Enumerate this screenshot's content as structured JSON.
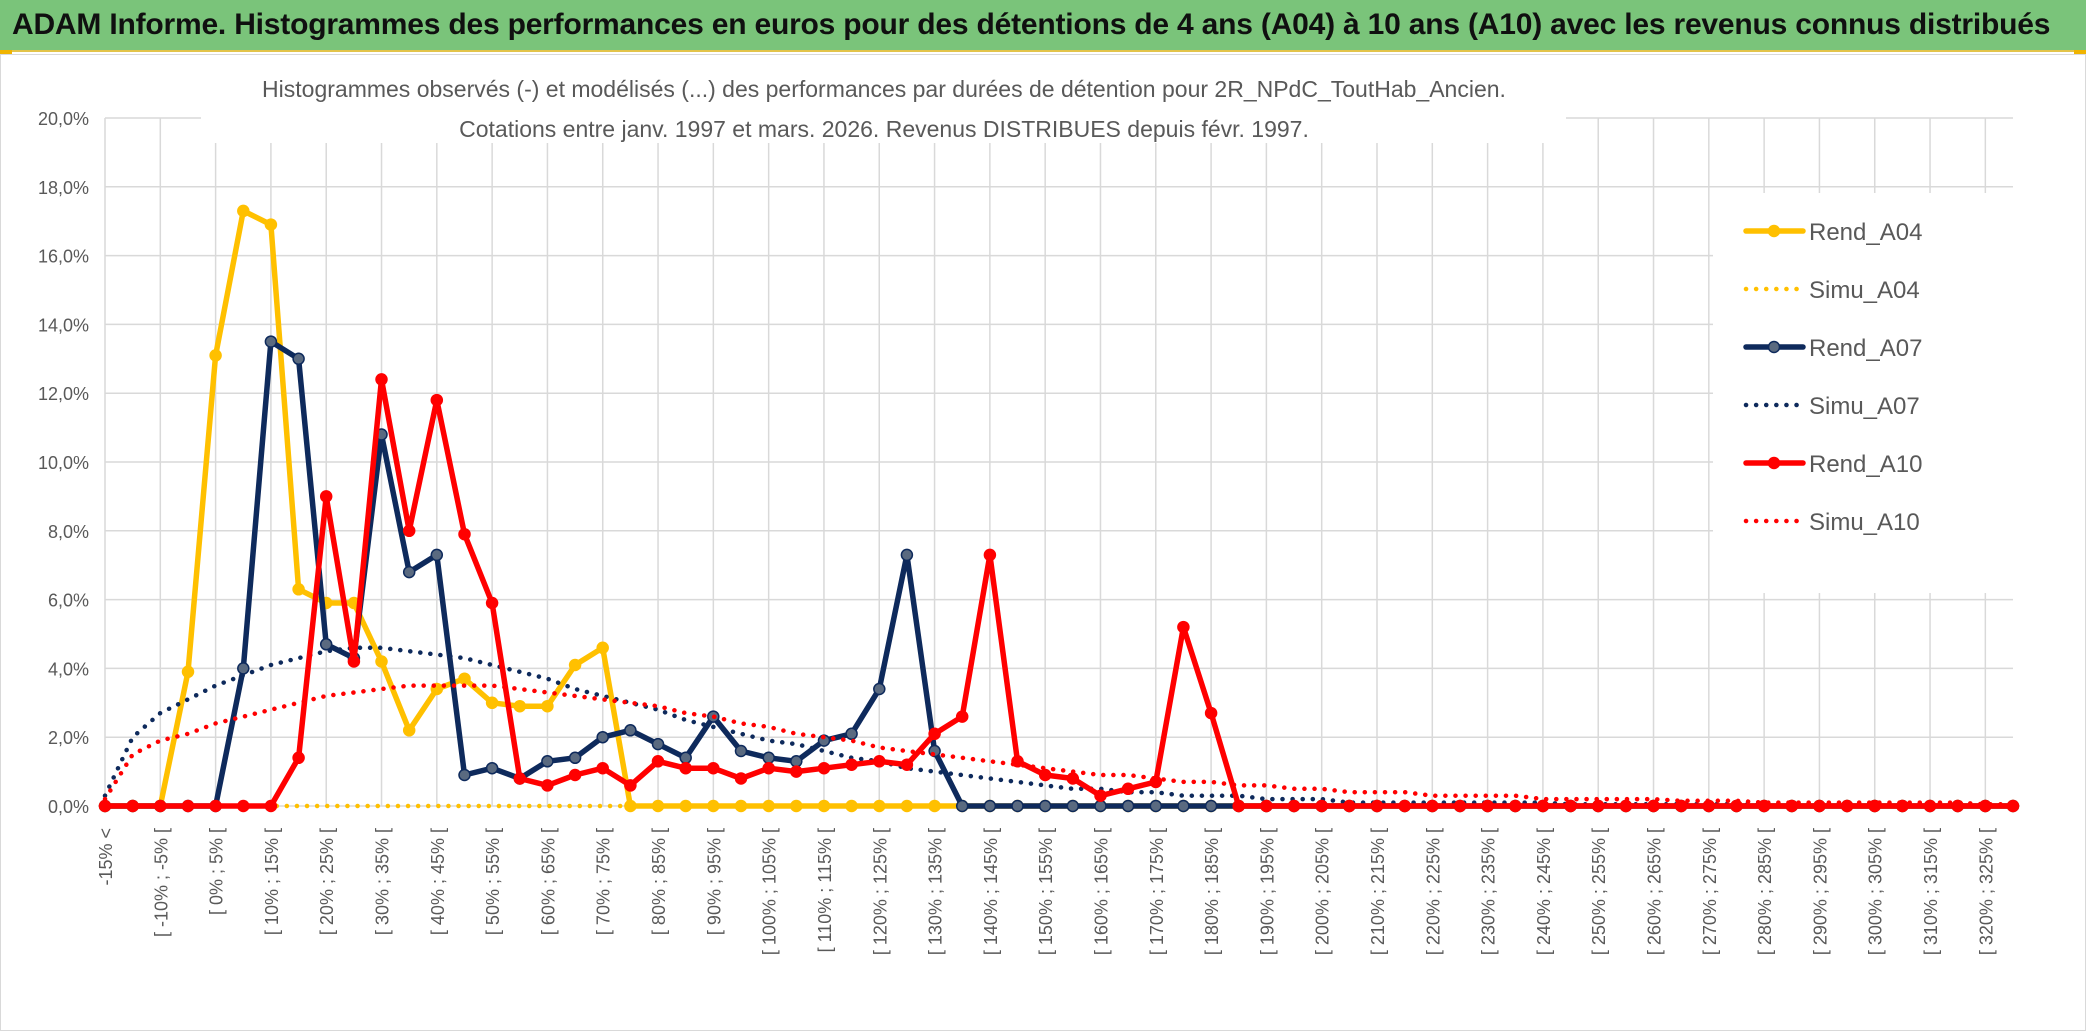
{
  "header": {
    "title": "ADAM Informe. Histogrammes des performances en euros pour des détentions de 4 ans (A04) à 10 ans (A10) avec les revenus connus distribués"
  },
  "chart_data": {
    "type": "line",
    "title_line1": "Histogrammes observés (-) et modélisés (...) des performances par durées de détention pour 2R_NPdC_ToutHab_Ancien.",
    "title_line2": "Cotations entre janv. 1997 et mars. 2026. Revenus DISTRIBUES depuis févr. 1997.",
    "xlabel": "",
    "ylabel": "",
    "ylim": [
      0,
      20
    ],
    "yticks": [
      0,
      2,
      4,
      6,
      8,
      10,
      12,
      14,
      16,
      18,
      20
    ],
    "ytick_labels": [
      "0,0%",
      "2,0%",
      "4,0%",
      "6,0%",
      "8,0%",
      "10,0%",
      "12,0%",
      "14,0%",
      "16,0%",
      "18,0%",
      "20,0%"
    ],
    "grid": true,
    "legend_position": "right",
    "categories": [
      "-15% <",
      "[ -15% ; -10% [",
      "[ -10% ; -5% [",
      "[ -5% ; 0% [",
      "[ 0% ; 5% [",
      "[ 5% ; 10% [",
      "[ 10% ; 15% [",
      "[ 15% ; 20% [",
      "[ 20% ; 25% [",
      "[ 25% ; 30% [",
      "[ 30% ; 35% [",
      "[ 35% ; 40% [",
      "[ 40% ; 45% [",
      "[ 45% ; 50% [",
      "[ 50% ; 55% [",
      "[ 55% ; 60% [",
      "[ 60% ; 65% [",
      "[ 65% ; 70% [",
      "[ 70% ; 75% [",
      "[ 75% ; 80% [",
      "[ 80% ; 85% [",
      "[ 85% ; 90% [",
      "[ 90% ; 95% [",
      "[ 95% ; 100% [",
      "[ 100% ; 105% [",
      "[ 105% ; 110% [",
      "[ 110% ; 115% [",
      "[ 115% ; 120% [",
      "[ 120% ; 125% [",
      "[ 125% ; 130% [",
      "[ 130% ; 135% [",
      "[ 135% ; 140% [",
      "[ 140% ; 145% [",
      "[ 145% ; 150% [",
      "[ 150% ; 155% [",
      "[ 155% ; 160% [",
      "[ 160% ; 165% [",
      "[ 165% ; 170% [",
      "[ 170% ; 175% [",
      "[ 175% ; 180% [",
      "[ 180% ; 185% [",
      "[ 185% ; 190% [",
      "[ 190% ; 195% [",
      "[ 195% ; 200% [",
      "[ 200% ; 205% [",
      "[ 205% ; 210% [",
      "[ 210% ; 215% [",
      "[ 215% ; 220% [",
      "[ 220% ; 225% [",
      "[ 225% ; 230% [",
      "[ 230% ; 235% [",
      "[ 235% ; 240% [",
      "[ 240% ; 245% [",
      "[ 245% ; 250% [",
      "[ 250% ; 255% [",
      "[ 255% ; 260% [",
      "[ 260% ; 265% [",
      "[ 265% ; 270% [",
      "[ 270% ; 275% [",
      "[ 275% ; 280% [",
      "[ 280% ; 285% [",
      "[ 285% ; 290% [",
      "[ 290% ; 295% [",
      "[ 295% ; 300% [",
      "[ 300% ; 305% [",
      "[ 305% ; 310% [",
      "[ 310% ; 315% [",
      "[ 315% ; 320% [",
      "[ 320% ; 325% [",
      "[ 325% ; 330% ["
    ],
    "tick_labels": [
      "-15% <",
      "[ -10% ; -5% [",
      "[ 0% ; 5% [",
      "[ 10% ; 15% [",
      "[ 20% ; 25% [",
      "[ 30% ; 35% [",
      "[ 40% ; 45% [",
      "[ 50% ; 55% [",
      "[ 60% ; 65% [",
      "[ 70% ; 75% [",
      "[ 80% ; 85% [",
      "[ 90% ; 95% [",
      "[ 100% ; 105% [",
      "[ 110% ; 115% [",
      "[ 120% ; 125% [",
      "[ 130% ; 135% [",
      "[ 140% ; 145% [",
      "[ 150% ; 155% [",
      "[ 160% ; 165% [",
      "[ 170% ; 175% [",
      "[ 180% ; 185% [",
      "[ 190% ; 195% [",
      "[ 200% ; 205% [",
      "[ 210% ; 215% [",
      "[ 220% ; 225% [",
      "[ 230% ; 235% [",
      "[ 240% ; 245% [",
      "[ 250% ; 255% [",
      "[ 260% ; 265% [",
      "[ 270% ; 275% [",
      "[ 280% ; 285% [",
      "[ 290% ; 295% [",
      "[ 300% ; 305% [",
      "[ 310% ; 315% [",
      "[ 320% ; 325% ["
    ],
    "series": [
      {
        "name": "Rend_A04",
        "color": "#ffc000",
        "style": "solid",
        "markers": true,
        "values": [
          0,
          0,
          0,
          3.9,
          13.1,
          17.3,
          16.9,
          6.3,
          5.9,
          5.9,
          4.2,
          2.2,
          3.4,
          3.7,
          3.0,
          2.9,
          2.9,
          4.1,
          4.6,
          0,
          0,
          0,
          0,
          0,
          0,
          0,
          0,
          0,
          0,
          0,
          0,
          0,
          0,
          0,
          0,
          0,
          0,
          0,
          0,
          0,
          0,
          0,
          0,
          0,
          0,
          0,
          0,
          0,
          0,
          0,
          0,
          0,
          0,
          0,
          0,
          0,
          0,
          0,
          0,
          0,
          0,
          0,
          0,
          0,
          0,
          0,
          0,
          0,
          0,
          0
        ]
      },
      {
        "name": "Simu_A04",
        "color": "#ffc000",
        "style": "dotted",
        "markers": false,
        "values": [
          0,
          0,
          0,
          0,
          0,
          0,
          0,
          0,
          0,
          0,
          0,
          0,
          0,
          0,
          0,
          0,
          0,
          0,
          0,
          0,
          0,
          0,
          0,
          0,
          0,
          0,
          0,
          0,
          0,
          0,
          0,
          0,
          0,
          0,
          0,
          0,
          0,
          0,
          0,
          0,
          0,
          0,
          0,
          0,
          0,
          0,
          0,
          0,
          0,
          0,
          0,
          0,
          0,
          0,
          0,
          0,
          0,
          0,
          0,
          0,
          0,
          0,
          0,
          0,
          0,
          0,
          0,
          0,
          0,
          0
        ]
      },
      {
        "name": "Rend_A07",
        "color": "#0e2a5c",
        "style": "solid",
        "markers": true,
        "values": [
          0,
          0,
          0,
          0,
          0,
          4.0,
          13.5,
          13.0,
          4.7,
          4.3,
          10.8,
          6.8,
          7.3,
          0.9,
          1.1,
          0.8,
          1.3,
          1.4,
          2.0,
          2.2,
          1.8,
          1.4,
          2.6,
          1.6,
          1.4,
          1.3,
          1.9,
          2.1,
          3.4,
          7.3,
          1.6,
          0,
          0,
          0,
          0,
          0,
          0,
          0,
          0,
          0,
          0,
          0,
          0,
          0,
          0,
          0,
          0,
          0,
          0,
          0,
          0,
          0,
          0,
          0,
          0,
          0,
          0,
          0,
          0,
          0,
          0,
          0,
          0,
          0,
          0,
          0,
          0,
          0,
          0,
          0
        ]
      },
      {
        "name": "Simu_A07",
        "color": "#0e2a5c",
        "style": "dotted",
        "markers": false,
        "values": [
          0.3,
          2.0,
          2.7,
          3.1,
          3.5,
          3.8,
          4.1,
          4.3,
          4.5,
          4.6,
          4.6,
          4.5,
          4.4,
          4.3,
          4.1,
          3.9,
          3.7,
          3.4,
          3.2,
          3.0,
          2.8,
          2.5,
          2.3,
          2.1,
          1.9,
          1.8,
          1.6,
          1.4,
          1.3,
          1.1,
          1.0,
          0.9,
          0.8,
          0.7,
          0.6,
          0.5,
          0.5,
          0.4,
          0.4,
          0.3,
          0.3,
          0.3,
          0.2,
          0.2,
          0.2,
          0.1,
          0.1,
          0.1,
          0.1,
          0.1,
          0.1,
          0.1,
          0.1,
          0.05,
          0.05,
          0.05,
          0.05,
          0.05,
          0.05,
          0.05,
          0.02,
          0.02,
          0.02,
          0.02,
          0.02,
          0.02,
          0.02,
          0.02,
          0.02,
          0.02
        ]
      },
      {
        "name": "Rend_A10",
        "color": "#ff0000",
        "style": "solid",
        "markers": true,
        "values": [
          0,
          0,
          0,
          0,
          0,
          0,
          0,
          1.4,
          9.0,
          4.2,
          12.4,
          8.0,
          11.8,
          7.9,
          5.9,
          0.8,
          0.6,
          0.9,
          1.1,
          0.6,
          1.3,
          1.1,
          1.1,
          0.8,
          1.1,
          1.0,
          1.1,
          1.2,
          1.3,
          1.2,
          2.1,
          2.6,
          7.3,
          1.3,
          0.9,
          0.8,
          0.3,
          0.5,
          0.7,
          5.2,
          2.7,
          0,
          0,
          0,
          0,
          0,
          0,
          0,
          0,
          0,
          0,
          0,
          0,
          0,
          0,
          0,
          0,
          0,
          0,
          0,
          0,
          0,
          0,
          0,
          0,
          0,
          0,
          0,
          0,
          0
        ]
      },
      {
        "name": "Simu_A10",
        "color": "#ff0000",
        "style": "dotted",
        "markers": false,
        "values": [
          0.2,
          1.5,
          1.9,
          2.1,
          2.4,
          2.6,
          2.8,
          3.0,
          3.2,
          3.3,
          3.4,
          3.5,
          3.5,
          3.5,
          3.5,
          3.4,
          3.3,
          3.2,
          3.1,
          3.0,
          2.9,
          2.7,
          2.6,
          2.4,
          2.3,
          2.1,
          2.0,
          1.9,
          1.7,
          1.6,
          1.5,
          1.4,
          1.3,
          1.2,
          1.1,
          1.0,
          0.9,
          0.9,
          0.8,
          0.7,
          0.7,
          0.6,
          0.6,
          0.5,
          0.5,
          0.4,
          0.4,
          0.4,
          0.3,
          0.3,
          0.3,
          0.3,
          0.2,
          0.2,
          0.2,
          0.2,
          0.2,
          0.15,
          0.15,
          0.15,
          0.1,
          0.1,
          0.1,
          0.1,
          0.1,
          0.1,
          0.1,
          0.1,
          0.05,
          0.05
        ]
      }
    ]
  }
}
